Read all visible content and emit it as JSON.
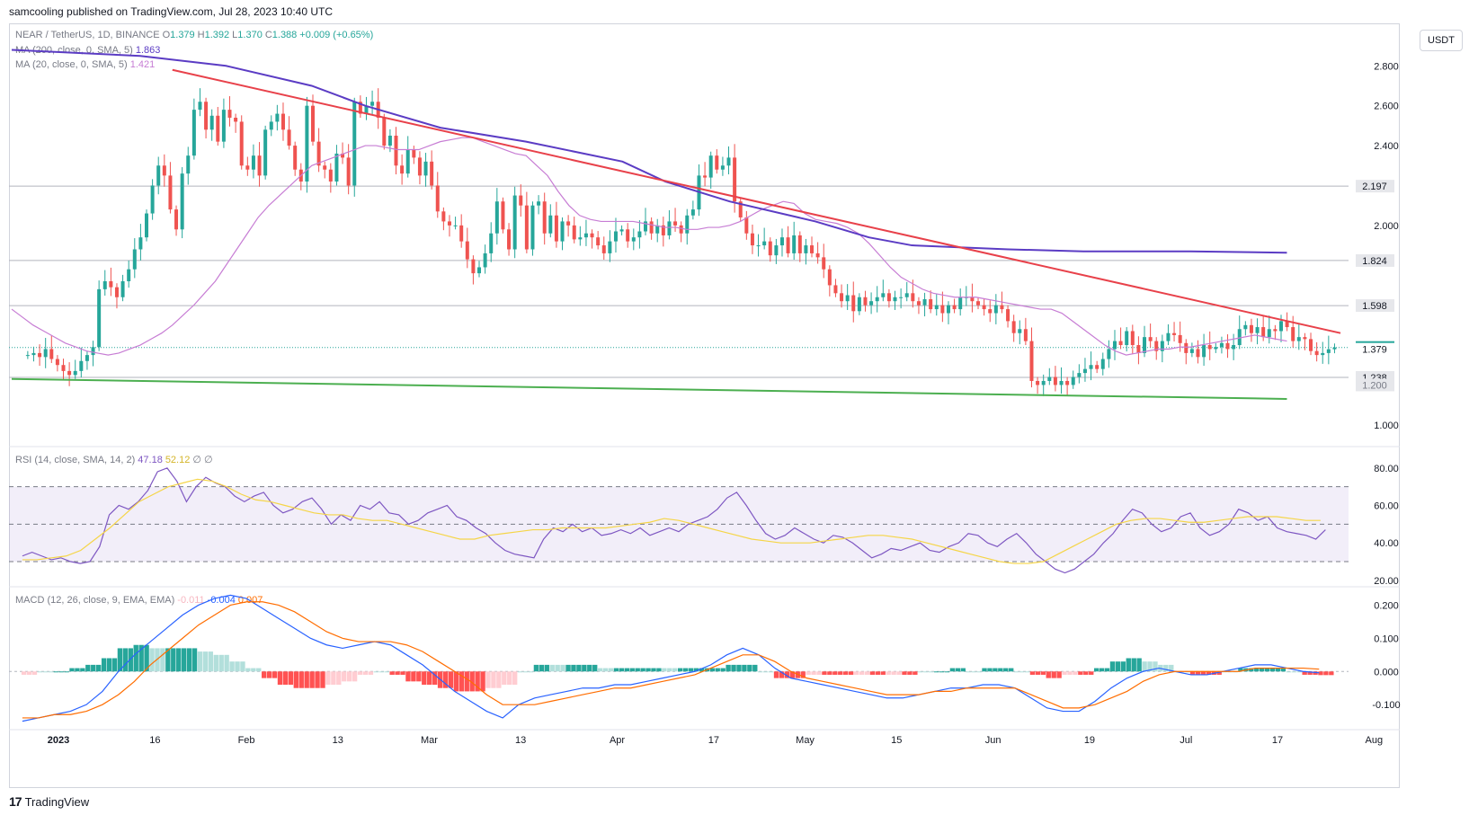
{
  "header": {
    "published": "samcooling published on TradingView.com, Jul 28, 2023 10:40 UTC",
    "unit_button": "USDT",
    "footer_brand": "TradingView",
    "footer_mark": "17"
  },
  "legend": {
    "symbol": "NEAR / TetherUS, 1D, BINANCE",
    "o_label": "O",
    "o_value": "1.379",
    "h_label": "H",
    "h_value": "1.392",
    "l_label": "L",
    "l_value": "1.370",
    "c_label": "C",
    "c_value": "1.388",
    "change": "+0.009 (+0.65%)",
    "ma200_label": "MA (200, close, 0, SMA, 5)",
    "ma200_value": "1.863",
    "ma20_label": "MA (20, close, 0, SMA, 5)",
    "ma20_value": "1.421",
    "rsi_label": "RSI (14, close, SMA, 14, 2)",
    "rsi_value": "47.18",
    "rsi_ma_value": "52.12",
    "rsi_extra": "∅ ∅",
    "macd_label": "MACD (12, 26, close, 9, EMA, EMA)",
    "macd_hist": "-0.011",
    "macd_value": "-0.004",
    "macd_signal": "0.007"
  },
  "colors": {
    "up": "#26a69a",
    "down": "#ef5350",
    "ma200": "#5b3cc4",
    "ma20": "#c77dd4",
    "resistance": "#e8414a",
    "support": "#4caf50",
    "rsi": "#7e57c2",
    "rsi_ma": "#f5d547",
    "macd": "#2962ff",
    "signal": "#ff6d00"
  },
  "chart_data": {
    "type": "candlestick",
    "price_axis": {
      "ticks": [
        "2.800",
        "2.600",
        "2.400",
        "2.000",
        "1.000"
      ],
      "ylim": [
        0.9,
        2.95
      ]
    },
    "price_labels": [
      {
        "value": "2.197",
        "style": "line"
      },
      {
        "value": "1.824",
        "style": "line"
      },
      {
        "value": "1.598",
        "style": "line"
      },
      {
        "value": "1.388",
        "style": "current"
      },
      {
        "value": "1.379",
        "style": "plain"
      },
      {
        "value": "1.238",
        "style": "line"
      },
      {
        "value": "1.200",
        "style": "muted"
      }
    ],
    "x_axis": {
      "labels": [
        "2023",
        "16",
        "Feb",
        "13",
        "Mar",
        "13",
        "Apr",
        "17",
        "May",
        "15",
        "Jun",
        "19",
        "Jul",
        "17",
        "Aug"
      ]
    },
    "closes": [
      1.35,
      1.36,
      1.34,
      1.38,
      1.33,
      1.3,
      1.27,
      1.25,
      1.27,
      1.32,
      1.35,
      1.39,
      1.68,
      1.72,
      1.69,
      1.64,
      1.72,
      1.78,
      1.88,
      1.94,
      2.06,
      2.2,
      2.3,
      2.25,
      2.08,
      1.98,
      2.26,
      2.35,
      2.58,
      2.62,
      2.48,
      2.55,
      2.42,
      2.58,
      2.54,
      2.52,
      2.3,
      2.28,
      2.35,
      2.25,
      2.48,
      2.52,
      2.56,
      2.48,
      2.4,
      2.28,
      2.22,
      2.6,
      2.42,
      2.3,
      2.28,
      2.22,
      2.36,
      2.34,
      2.2,
      2.62,
      2.56,
      2.6,
      2.62,
      2.54,
      2.4,
      2.45,
      2.3,
      2.26,
      2.38,
      2.34,
      2.25,
      2.32,
      2.2,
      2.07,
      2.02,
      2.0,
      2.0,
      1.92,
      1.83,
      1.76,
      1.79,
      1.86,
      1.96,
      2.12,
      1.98,
      1.88,
      2.15,
      2.1,
      1.88,
      2.1,
      2.12,
      1.96,
      2.05,
      1.92,
      2.02,
      2.0,
      1.93,
      1.94,
      1.96,
      1.94,
      1.9,
      1.86,
      1.92,
      1.97,
      1.98,
      1.92,
      1.94,
      1.97,
      2.02,
      1.96,
      2.0,
      1.95,
      2.02,
      2.0,
      1.96,
      2.05,
      2.08,
      2.25,
      2.24,
      2.35,
      2.28,
      2.3,
      2.34,
      2.12,
      2.04,
      1.96,
      1.9,
      1.9,
      1.92,
      1.85,
      1.9,
      1.94,
      1.86,
      1.95,
      1.86,
      1.9,
      1.86,
      1.84,
      1.78,
      1.7,
      1.66,
      1.62,
      1.65,
      1.57,
      1.64,
      1.6,
      1.62,
      1.64,
      1.66,
      1.62,
      1.64,
      1.64,
      1.66,
      1.62,
      1.6,
      1.63,
      1.58,
      1.6,
      1.56,
      1.6,
      1.58,
      1.64,
      1.64,
      1.62,
      1.6,
      1.58,
      1.56,
      1.6,
      1.58,
      1.52,
      1.46,
      1.48,
      1.42,
      1.22,
      1.2,
      1.22,
      1.24,
      1.2,
      1.22,
      1.2,
      1.24,
      1.26,
      1.28,
      1.3,
      1.28,
      1.33,
      1.38,
      1.42,
      1.4,
      1.47,
      1.4,
      1.36,
      1.44,
      1.42,
      1.37,
      1.42,
      1.46,
      1.45,
      1.41,
      1.36,
      1.38,
      1.34,
      1.4,
      1.38,
      1.39,
      1.41,
      1.38,
      1.4,
      1.48,
      1.5,
      1.46,
      1.49,
      1.44,
      1.48,
      1.47,
      1.52,
      1.49,
      1.42,
      1.44,
      1.43,
      1.37,
      1.35,
      1.36,
      1.379,
      1.388
    ],
    "ma20": [
      1.58,
      1.54,
      1.5,
      1.47,
      1.44,
      1.41,
      1.39,
      1.37,
      1.36,
      1.35,
      1.36,
      1.38,
      1.4,
      1.43,
      1.46,
      1.5,
      1.55,
      1.6,
      1.66,
      1.72,
      1.8,
      1.88,
      1.96,
      2.04,
      2.1,
      2.15,
      2.2,
      2.25,
      2.3,
      2.32,
      2.34,
      2.36,
      2.38,
      2.4,
      2.4,
      2.39,
      2.38,
      2.38,
      2.38,
      2.4,
      2.42,
      2.43,
      2.44,
      2.44,
      2.42,
      2.4,
      2.38,
      2.36,
      2.35,
      2.3,
      2.25,
      2.17,
      2.1,
      2.05,
      2.03,
      2.02,
      2.02,
      2.02,
      2.02,
      2.01,
      2.0,
      1.99,
      1.99,
      1.98,
      1.98,
      1.99,
      1.99,
      2.0,
      2.02,
      2.05,
      2.08,
      2.1,
      2.12,
      2.11,
      2.06,
      2.03,
      2.02,
      2.01,
      1.99,
      1.96,
      1.91,
      1.85,
      1.79,
      1.74,
      1.71,
      1.68,
      1.66,
      1.65,
      1.64,
      1.64,
      1.64,
      1.63,
      1.62,
      1.61,
      1.6,
      1.59,
      1.58,
      1.58,
      1.56,
      1.52,
      1.48,
      1.44,
      1.4,
      1.37,
      1.35,
      1.36,
      1.37,
      1.38,
      1.38,
      1.39,
      1.39,
      1.4,
      1.41,
      1.42,
      1.43,
      1.44,
      1.45,
      1.44,
      1.43,
      1.42
    ],
    "ma20_days": [
      0,
      2,
      4,
      6,
      8,
      10,
      12,
      14,
      16,
      18,
      20,
      22,
      24,
      26,
      28,
      30,
      32,
      34,
      36,
      38,
      40,
      42,
      44,
      46,
      48,
      50,
      52,
      54,
      56,
      58,
      60,
      62,
      64,
      66,
      68,
      70,
      72,
      74,
      76,
      78,
      80,
      82,
      84,
      86,
      88,
      90,
      92,
      94,
      96,
      98,
      100,
      102,
      104,
      106,
      108,
      110,
      112,
      114,
      116,
      118,
      120,
      122,
      124,
      126,
      128,
      130,
      132,
      134,
      136,
      138,
      140,
      142,
      144,
      146,
      148,
      150,
      152,
      154,
      156,
      158,
      160,
      162,
      164,
      166,
      168,
      170,
      172,
      174,
      176,
      178,
      180,
      182,
      184,
      186,
      188,
      190,
      192,
      194,
      196,
      198,
      200,
      202,
      204,
      206,
      208,
      210,
      212,
      214,
      216,
      218,
      220,
      222,
      224,
      226,
      228,
      230,
      232,
      234,
      236,
      238
    ],
    "ma200": [
      [
        0,
        2.88
      ],
      [
        24,
        2.85
      ],
      [
        40,
        2.8
      ],
      [
        56,
        2.7
      ],
      [
        66,
        2.6
      ],
      [
        80,
        2.49
      ],
      [
        96,
        2.42
      ],
      [
        114,
        2.32
      ],
      [
        122,
        2.22
      ],
      [
        134,
        2.12
      ],
      [
        150,
        2.02
      ],
      [
        160,
        1.94
      ],
      [
        168,
        1.9
      ],
      [
        186,
        1.88
      ],
      [
        200,
        1.87
      ],
      [
        220,
        1.87
      ],
      [
        238,
        1.863
      ]
    ],
    "resistance": [
      [
        30,
        2.78
      ],
      [
        248,
        1.46
      ]
    ],
    "support": [
      [
        0,
        1.23
      ],
      [
        238,
        1.13
      ]
    ],
    "rsi": {
      "ticks": [
        "80.00",
        "60.00",
        "40.00",
        "20.00"
      ],
      "bands": [
        70,
        50,
        30
      ],
      "values": [
        33,
        35,
        33,
        31,
        32,
        30,
        29,
        30,
        38,
        55,
        60,
        58,
        62,
        68,
        78,
        80,
        73,
        62,
        70,
        75,
        72,
        70,
        65,
        62,
        65,
        67,
        60,
        56,
        58,
        62,
        64,
        58,
        50,
        55,
        52,
        60,
        58,
        62,
        56,
        55,
        50,
        52,
        56,
        58,
        60,
        54,
        52,
        48,
        45,
        40,
        36,
        34,
        33,
        32,
        42,
        48,
        46,
        50,
        46,
        48,
        44,
        45,
        47,
        45,
        48,
        44,
        46,
        48,
        46,
        50,
        52,
        54,
        58,
        64,
        67,
        60,
        52,
        45,
        42,
        44,
        48,
        45,
        42,
        40,
        44,
        43,
        40,
        36,
        32,
        34,
        37,
        36,
        38,
        40,
        36,
        35,
        38,
        40,
        45,
        44,
        40,
        38,
        42,
        45,
        40,
        34,
        30,
        26,
        24,
        26,
        30,
        34,
        40,
        45,
        52,
        58,
        56,
        50,
        46,
        48,
        54,
        56,
        48,
        44,
        46,
        50,
        58,
        56,
        52,
        54,
        48,
        46,
        45,
        44,
        42,
        47
      ],
      "ma": [
        31,
        31,
        32,
        33,
        36,
        42,
        48,
        55,
        62,
        66,
        70,
        72,
        74,
        73,
        70,
        66,
        63,
        62,
        60,
        58,
        56,
        55,
        55,
        53,
        52,
        52,
        50,
        48,
        46,
        44,
        42,
        42,
        44,
        45,
        46,
        47,
        47,
        48,
        48,
        48,
        48,
        49,
        50,
        51,
        53,
        52,
        50,
        48,
        46,
        44,
        42,
        41,
        40,
        40,
        40,
        41,
        42,
        43,
        44,
        44,
        43,
        42,
        40,
        38,
        36,
        34,
        32,
        30,
        29,
        29,
        30,
        34,
        38,
        42,
        46,
        50,
        52,
        53,
        53,
        52,
        51,
        51,
        52,
        53,
        54,
        54,
        54,
        53,
        52,
        52
      ],
      "ylim": [
        18,
        90
      ]
    },
    "macd": {
      "ticks": [
        "0.200",
        "0.100",
        "0.000",
        "-0.100"
      ],
      "macd": [
        -0.15,
        -0.14,
        -0.13,
        -0.12,
        -0.1,
        -0.06,
        0.0,
        0.05,
        0.09,
        0.13,
        0.17,
        0.2,
        0.22,
        0.23,
        0.22,
        0.19,
        0.16,
        0.13,
        0.1,
        0.08,
        0.07,
        0.08,
        0.09,
        0.08,
        0.05,
        0.02,
        -0.02,
        -0.06,
        -0.09,
        -0.12,
        -0.14,
        -0.1,
        -0.08,
        -0.07,
        -0.06,
        -0.05,
        -0.05,
        -0.04,
        -0.04,
        -0.03,
        -0.02,
        -0.01,
        0.0,
        0.02,
        0.05,
        0.07,
        0.05,
        0.01,
        -0.02,
        -0.03,
        -0.04,
        -0.05,
        -0.06,
        -0.07,
        -0.08,
        -0.08,
        -0.07,
        -0.06,
        -0.05,
        -0.05,
        -0.04,
        -0.04,
        -0.05,
        -0.08,
        -0.11,
        -0.12,
        -0.12,
        -0.09,
        -0.05,
        -0.02,
        0.0,
        0.01,
        0.0,
        -0.01,
        -0.01,
        0.0,
        0.01,
        0.02,
        0.02,
        0.01,
        0.0,
        -0.004
      ],
      "signal": [
        -0.14,
        -0.14,
        -0.13,
        -0.13,
        -0.12,
        -0.1,
        -0.07,
        -0.03,
        0.02,
        0.06,
        0.1,
        0.14,
        0.17,
        0.2,
        0.21,
        0.21,
        0.2,
        0.18,
        0.15,
        0.12,
        0.1,
        0.09,
        0.09,
        0.09,
        0.08,
        0.06,
        0.03,
        0.0,
        -0.03,
        -0.07,
        -0.1,
        -0.1,
        -0.1,
        -0.09,
        -0.08,
        -0.07,
        -0.06,
        -0.05,
        -0.05,
        -0.04,
        -0.03,
        -0.02,
        -0.01,
        0.01,
        0.03,
        0.05,
        0.05,
        0.03,
        0.0,
        -0.02,
        -0.03,
        -0.04,
        -0.05,
        -0.06,
        -0.07,
        -0.07,
        -0.07,
        -0.06,
        -0.06,
        -0.05,
        -0.05,
        -0.05,
        -0.05,
        -0.07,
        -0.09,
        -0.11,
        -0.11,
        -0.1,
        -0.08,
        -0.06,
        -0.03,
        -0.01,
        0.0,
        0.0,
        0.0,
        0.0,
        0.0,
        0.01,
        0.01,
        0.01,
        0.01,
        0.007
      ],
      "ylim": [
        -0.17,
        0.25
      ]
    }
  }
}
